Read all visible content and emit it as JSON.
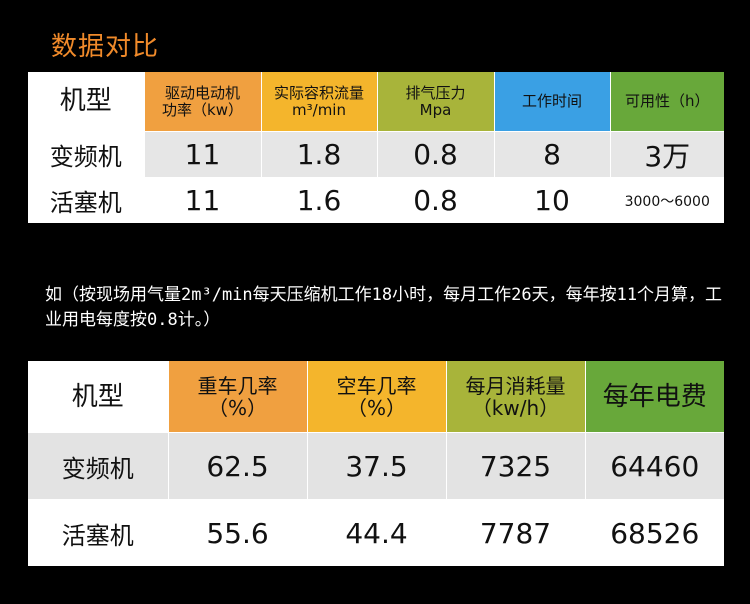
{
  "title": "数据对比",
  "table1": {
    "corner": "机型",
    "headers": [
      {
        "line1": "驱动电动机",
        "line2": "功率（kw）"
      },
      {
        "line1": "实际容积流量",
        "line2": "m³/min"
      },
      {
        "line1": "排气压力",
        "line2": "Mpa"
      },
      {
        "line1": "工作时间",
        "line2": ""
      },
      {
        "line1": "可用性（h）",
        "line2": ""
      }
    ],
    "rows": [
      {
        "label": "变频机",
        "cells": [
          "11",
          "1.8",
          "0.8",
          "8",
          "3万"
        ]
      },
      {
        "label": "活塞机",
        "cells": [
          "11",
          "1.6",
          "0.8",
          "10",
          "3000～6000"
        ]
      }
    ]
  },
  "note": "如（按现场用气量2m³/min每天压缩机工作18小时，每月工作26天，每年按11个月算，工业用电每度按0.8计。）",
  "table2": {
    "corner": "机型",
    "headers": [
      {
        "line1": "重车几率",
        "line2": "（%）"
      },
      {
        "line1": "空车几率",
        "line2": "（%）"
      },
      {
        "line1": "每月消耗量",
        "line2": "（kw/h）"
      },
      {
        "line1": "每年电费",
        "line2": ""
      }
    ],
    "rows": [
      {
        "label": "变频机",
        "cells": [
          "62.5",
          "37.5",
          "7325",
          "64460"
        ]
      },
      {
        "label": "活塞机",
        "cells": [
          "55.6",
          "44.4",
          "7787",
          "68526"
        ]
      }
    ]
  }
}
